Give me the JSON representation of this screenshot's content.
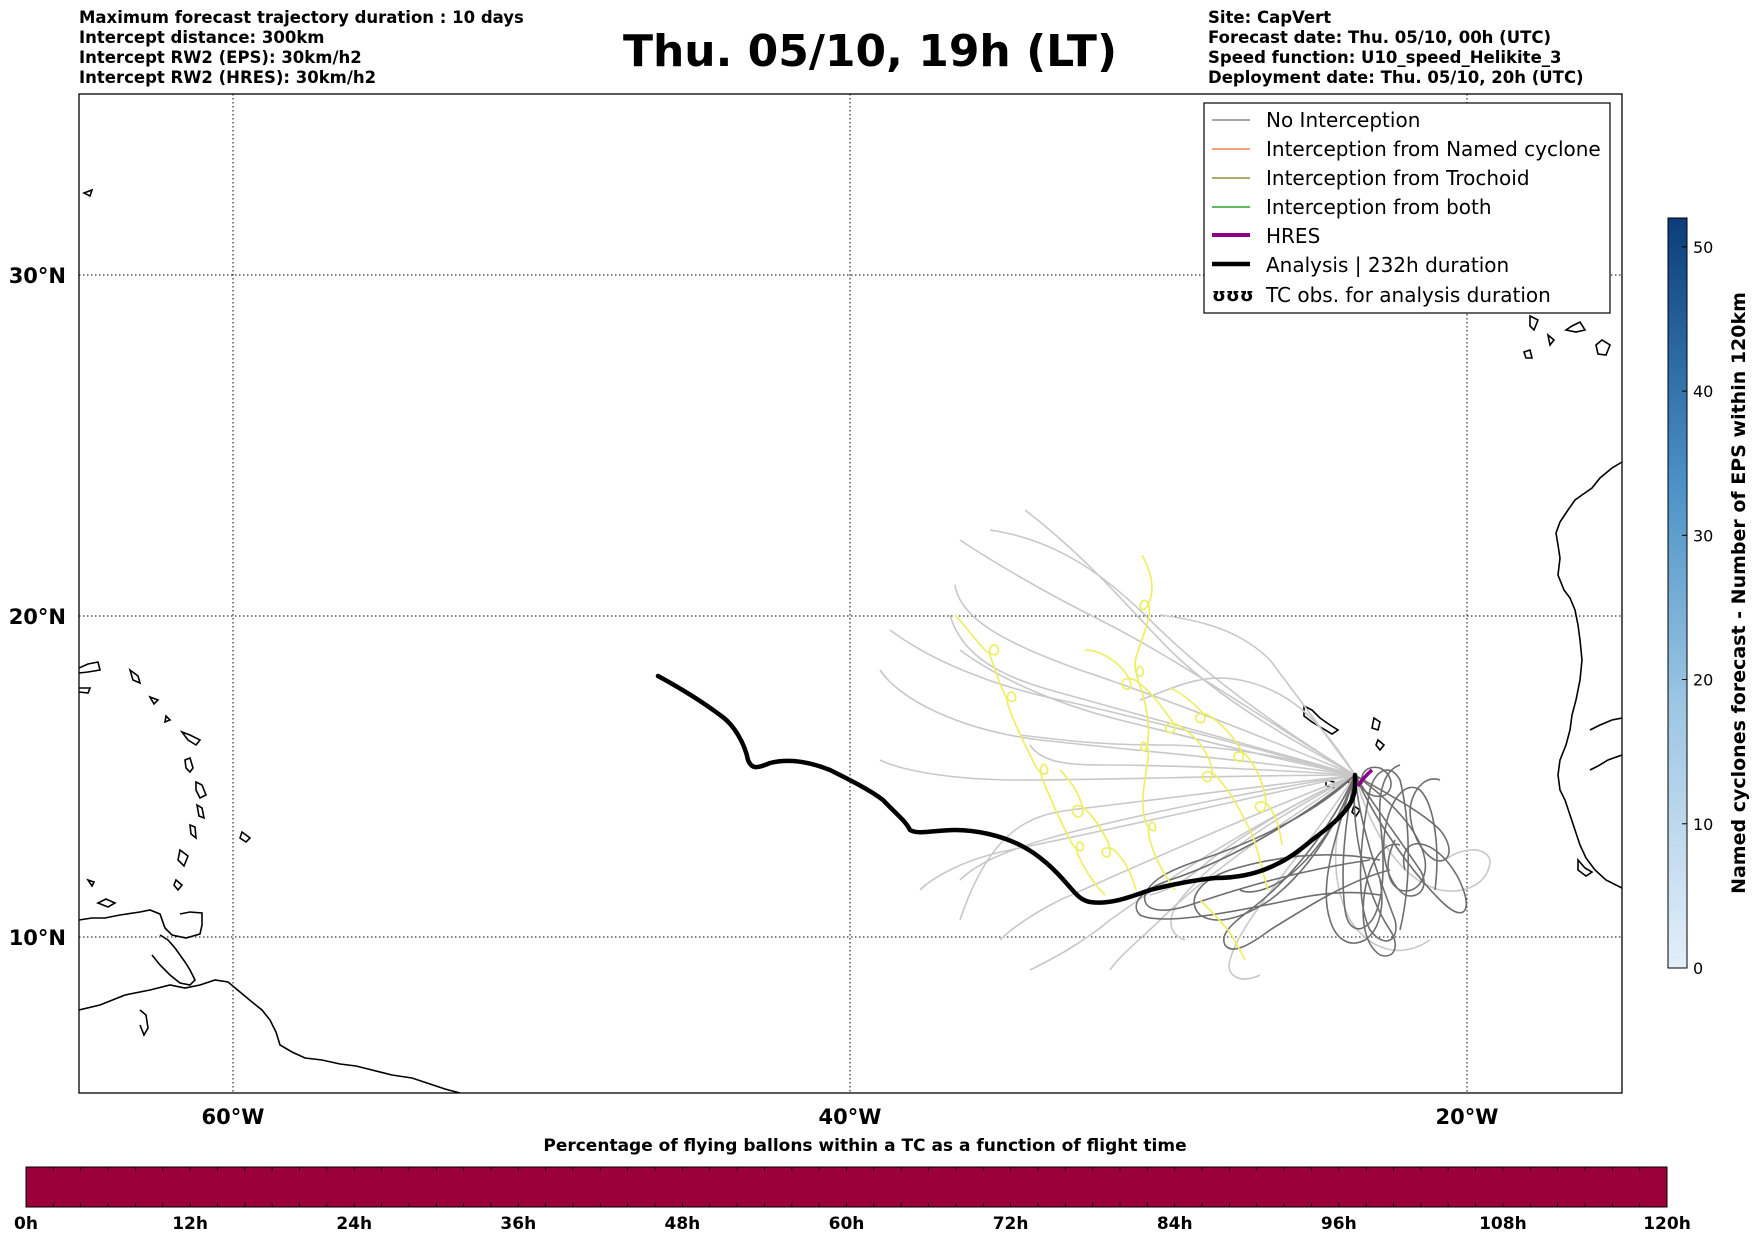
{
  "header": {
    "left_lines": [
      "Maximum forecast trajectory duration : 10 days",
      "Intercept distance: 300km",
      "Intercept RW2 (EPS):  30km/h2",
      "Intercept RW2 (HRES): 30km/h2"
    ],
    "title": "Thu. 05/10, 19h (LT)",
    "right_lines": [
      "Site: CapVert",
      "Forecast date: Thu. 05/10, 00h (UTC)",
      "Speed function: U10_speed_Helikite_3",
      "Deployment date: Thu. 05/10, 20h (UTC)"
    ]
  },
  "map": {
    "lat_labels": [
      "30°N",
      "20°N",
      "10°N"
    ],
    "lon_labels": [
      "60°W",
      "40°W",
      "20°W"
    ],
    "extent": {
      "lon": [
        -65,
        -15
      ],
      "lat": [
        5.5,
        35
      ]
    },
    "gridlines": {
      "lon": [
        -60,
        -40,
        -20
      ],
      "lat": [
        30,
        20,
        10
      ]
    },
    "colors": {
      "no_interception": "#888888",
      "named_cyclone": "#ff7f50",
      "trochoid": "#9a8a3a",
      "both": "#2ca02c",
      "hres": "#8b008b",
      "analysis": "#000000",
      "eps_light": "#c8c8c8",
      "eps_dark": "#6e6e6e",
      "trochoid_track": "#eeee66"
    }
  },
  "legend": {
    "items": [
      {
        "label": "No Interception",
        "style": "thin-gray-line"
      },
      {
        "label": "Interception from Named cyclone",
        "style": "thin-coral-line"
      },
      {
        "label": "Interception from Trochoid",
        "style": "thin-olive-line"
      },
      {
        "label": "Interception from both",
        "style": "thin-green-line"
      },
      {
        "label": "HRES",
        "style": "thick-purple-line"
      },
      {
        "label": "Analysis | 232h duration",
        "style": "thick-black-line"
      },
      {
        "label": "TC obs. for analysis duration",
        "style": "hurricane-symbols",
        "symbol": "ʊʊʊ"
      }
    ]
  },
  "right_colorbar": {
    "title": "Named cyclones forecast - Number of EPS within 120km",
    "ticks": [
      "0",
      "10",
      "20",
      "30",
      "40",
      "50"
    ],
    "range": [
      0,
      52
    ],
    "colors": [
      "#e3eef9",
      "#0b3d7a"
    ]
  },
  "bottom_colorbar": {
    "title": "Percentage of flying ballons within a TC as a function of flight time",
    "ticks": [
      "0h",
      "12h",
      "24h",
      "36h",
      "48h",
      "60h",
      "72h",
      "84h",
      "96h",
      "108h",
      "120h"
    ],
    "fill_color": "#9b003a"
  }
}
